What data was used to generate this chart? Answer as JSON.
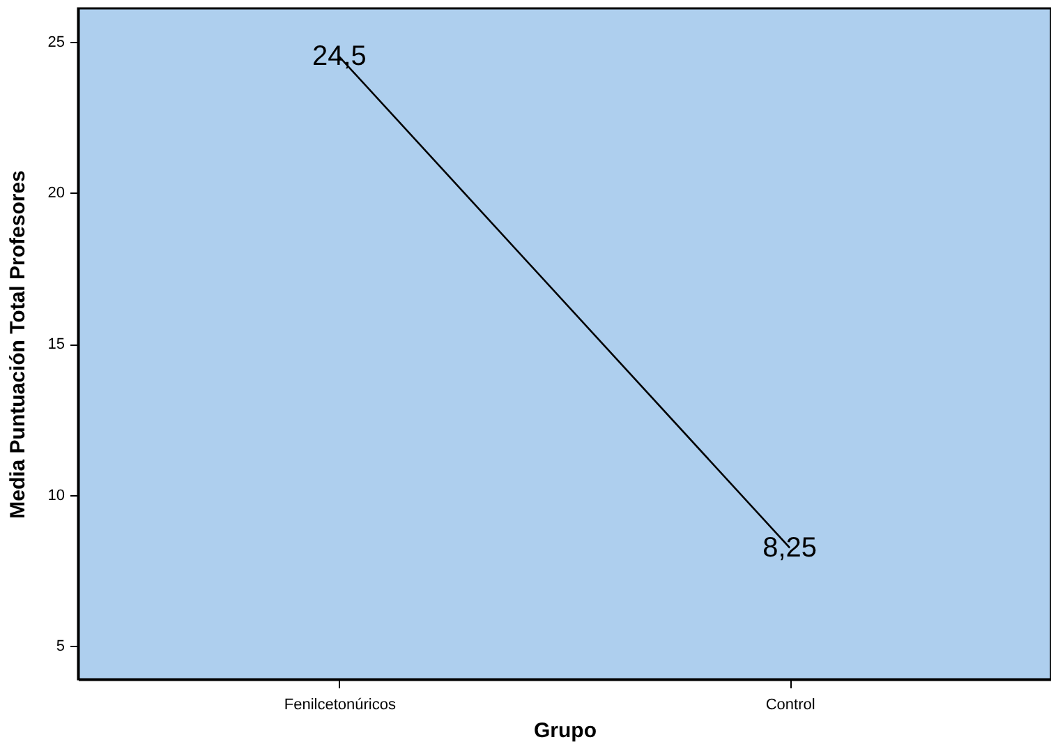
{
  "chart_data": {
    "type": "line",
    "xlabel": "Grupo",
    "ylabel": "Media Puntuación Total Profesores",
    "categories": [
      "Fenilcetonúricos",
      "Control"
    ],
    "series": [
      {
        "color": "#000000",
        "values": [
          24.5,
          8.25
        ],
        "value_labels": [
          "24,5",
          "8,25"
        ]
      }
    ],
    "ylim": [
      3.9,
      26.1
    ],
    "yticks": [
      5,
      10,
      15,
      20,
      25
    ],
    "grid": false,
    "marker": "none"
  }
}
